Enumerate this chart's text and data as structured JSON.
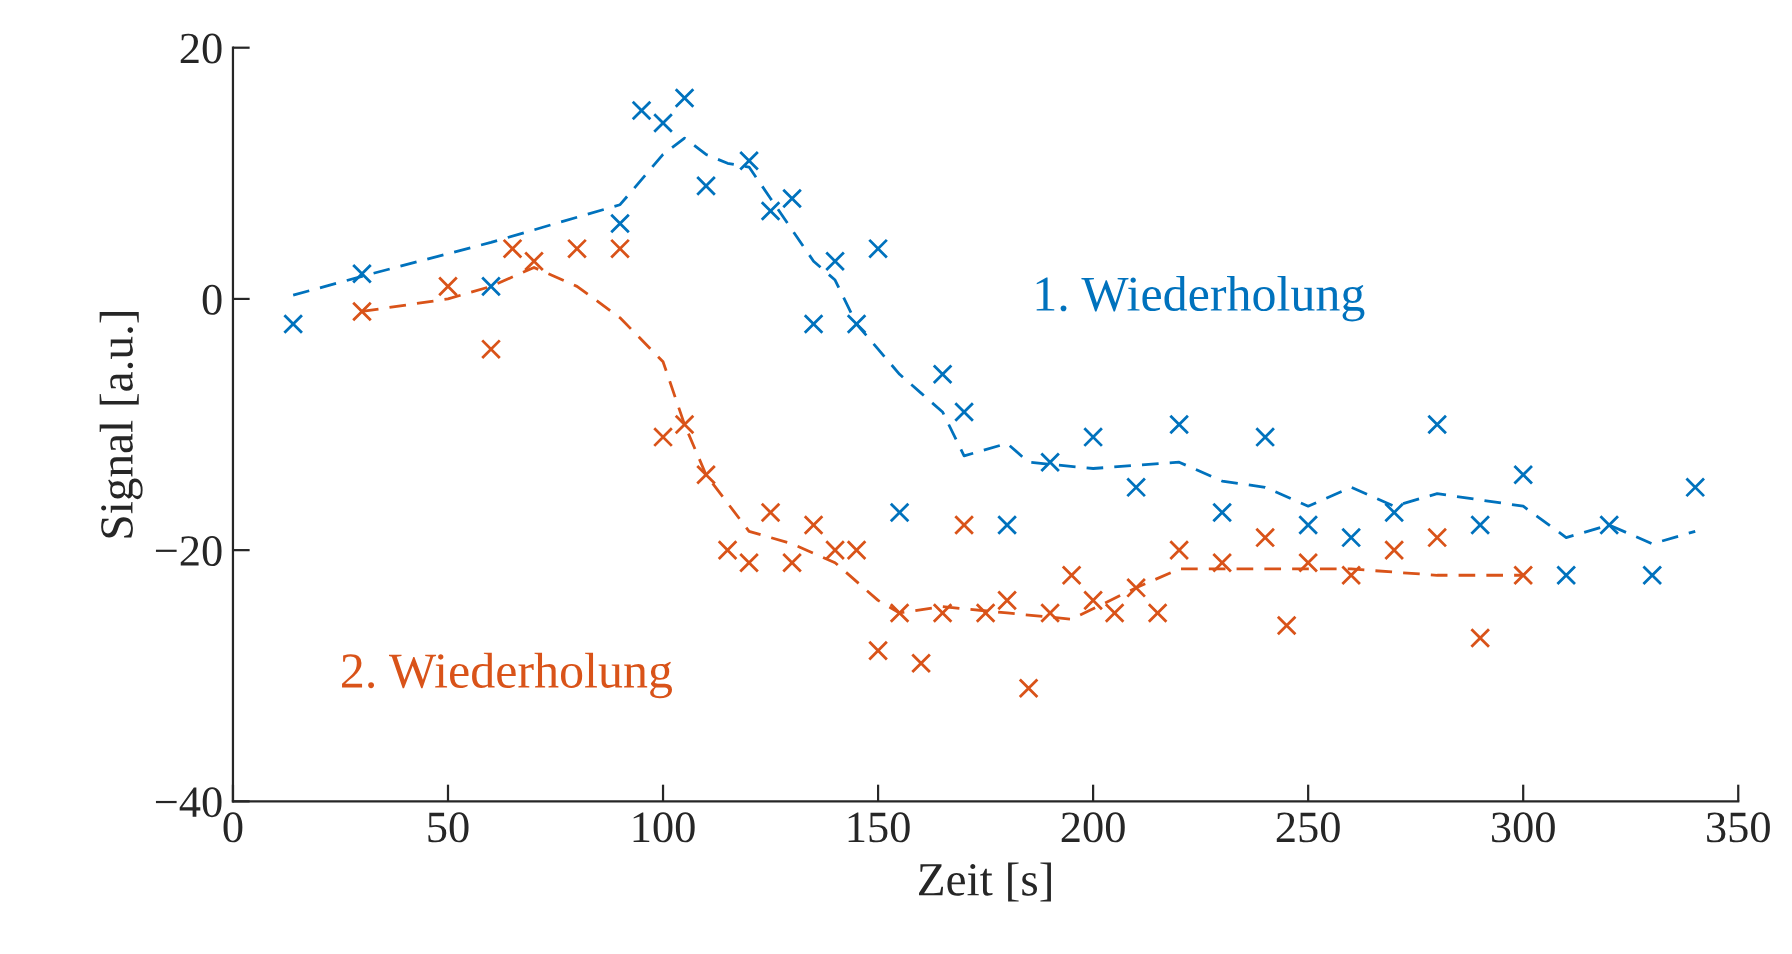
{
  "chart_data": {
    "type": "scatter",
    "xlabel": "Zeit [s]",
    "ylabel": "Signal [a.u.]",
    "xlim": [
      0,
      350
    ],
    "ylim": [
      -40,
      20
    ],
    "xticks": [
      0,
      50,
      100,
      150,
      200,
      250,
      300,
      350
    ],
    "yticks": [
      -40,
      -20,
      0,
      20
    ],
    "grid": false,
    "legend": false,
    "series": [
      {
        "name": "1. Wiederholung",
        "color": "#0072bd",
        "marker": "cross",
        "x": [
          14,
          30,
          60,
          90,
          95,
          100,
          105,
          110,
          120,
          125,
          130,
          135,
          140,
          145,
          150,
          155,
          165,
          170,
          180,
          190,
          200,
          210,
          220,
          230,
          240,
          250,
          260,
          270,
          280,
          290,
          300,
          310,
          320,
          330,
          340
        ],
        "values": [
          -2,
          2,
          1,
          6,
          15,
          14,
          16,
          9,
          11,
          7,
          8,
          -2,
          3,
          -2,
          4,
          -17,
          -6,
          -9,
          -18,
          -13,
          -11,
          -15,
          -10,
          -17,
          -11,
          -18,
          -19,
          -17,
          -10,
          -18,
          -14,
          -22,
          -18,
          -22,
          -15
        ]
      },
      {
        "type": "line",
        "color": "#0072bd",
        "line_style": "dashed",
        "marker": "none",
        "x": [
          14,
          30,
          60,
          90,
          100,
          105,
          110,
          115,
          120,
          125,
          130,
          135,
          140,
          145,
          150,
          155,
          160,
          165,
          170,
          180,
          185,
          200,
          220,
          230,
          240,
          250,
          260,
          270,
          280,
          290,
          300,
          310,
          320,
          330,
          340
        ],
        "values": [
          0.3,
          1.8,
          4.5,
          7.5,
          11.5,
          12.8,
          11.5,
          10.8,
          10.5,
          8,
          5.5,
          3,
          1.5,
          -2,
          -4,
          -6,
          -7.5,
          -9,
          -12.5,
          -11.5,
          -13,
          -13.5,
          -13,
          -14.5,
          -15,
          -16.5,
          -15,
          -16.5,
          -15.5,
          -16,
          -16.5,
          -19,
          -18,
          -19.5,
          -18.5
        ]
      },
      {
        "name": "2. Wiederholung",
        "color": "#d95319",
        "marker": "cross",
        "x": [
          30,
          50,
          60,
          65,
          70,
          80,
          90,
          100,
          105,
          110,
          115,
          120,
          125,
          130,
          135,
          140,
          145,
          150,
          155,
          160,
          165,
          170,
          175,
          180,
          185,
          190,
          195,
          200,
          205,
          210,
          215,
          220,
          230,
          240,
          245,
          250,
          260,
          270,
          280,
          290,
          300
        ],
        "values": [
          -1,
          1,
          -4,
          4,
          3,
          4,
          4,
          -11,
          -10,
          -14,
          -20,
          -21,
          -17,
          -21,
          -18,
          -20,
          -20,
          -28,
          -25,
          -29,
          -25,
          -18,
          -25,
          -24,
          -31,
          -25,
          -22,
          -24,
          -25,
          -23,
          -25,
          -20,
          -21,
          -19,
          -26,
          -21,
          -22,
          -20,
          -19,
          -27,
          -22
        ]
      },
      {
        "type": "line",
        "color": "#d95319",
        "line_style": "dashed",
        "marker": "none",
        "x": [
          30,
          50,
          60,
          70,
          80,
          90,
          100,
          105,
          110,
          120,
          130,
          140,
          150,
          155,
          165,
          180,
          195,
          210,
          220,
          240,
          260,
          280,
          300
        ],
        "values": [
          -1,
          0,
          1,
          2.5,
          1,
          -1.5,
          -5,
          -10,
          -14,
          -18.5,
          -19.5,
          -21,
          -24,
          -25,
          -24.5,
          -25,
          -25.5,
          -23,
          -21.5,
          -21.5,
          -21.5,
          -22,
          -22
        ]
      }
    ]
  }
}
